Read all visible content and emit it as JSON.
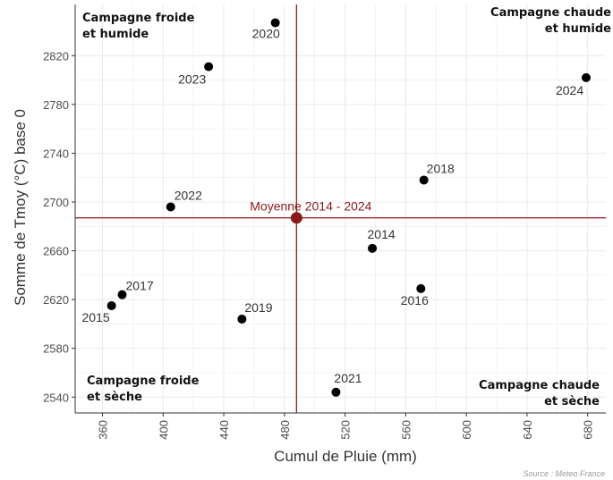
{
  "chart_data": {
    "type": "scatter",
    "xlabel": "Cumul de Pluie (mm)",
    "ylabel": "Somme de Tmoy (°C) base 0",
    "xlim": [
      342,
      692
    ],
    "ylim": [
      2527,
      2862
    ],
    "x_ticks": [
      360,
      400,
      440,
      480,
      520,
      560,
      600,
      640,
      680
    ],
    "y_ticks": [
      2540,
      2580,
      2620,
      2660,
      2700,
      2740,
      2780,
      2820
    ],
    "x_tick_labels": [
      "360",
      "400",
      "440",
      "480",
      "520",
      "560",
      "600",
      "640",
      "680"
    ],
    "y_tick_labels": [
      "2540",
      "2580",
      "2620",
      "2660",
      "2700",
      "2740",
      "2780",
      "2820"
    ],
    "grid": true,
    "points": [
      {
        "label": "2014",
        "x": 538,
        "y": 2662
      },
      {
        "label": "2015",
        "x": 366,
        "y": 2615
      },
      {
        "label": "2016",
        "x": 570,
        "y": 2629
      },
      {
        "label": "2017",
        "x": 373,
        "y": 2624
      },
      {
        "label": "2018",
        "x": 572,
        "y": 2718
      },
      {
        "label": "2019",
        "x": 452,
        "y": 2604
      },
      {
        "label": "2020",
        "x": 474,
        "y": 2847
      },
      {
        "label": "2021",
        "x": 514,
        "y": 2544
      },
      {
        "label": "2022",
        "x": 405,
        "y": 2696
      },
      {
        "label": "2023",
        "x": 430,
        "y": 2811
      },
      {
        "label": "2024",
        "x": 679,
        "y": 2802
      }
    ],
    "mean_point": {
      "label": "Moyenne 2014 - 2024",
      "x": 488,
      "y": 2687
    },
    "quadrants": {
      "top_left": [
        "Campagne froide",
        "et humide"
      ],
      "top_right": [
        "Campagne chaude",
        "et humide"
      ],
      "bottom_left": [
        "Campagne froide",
        "et sèche"
      ],
      "bottom_right": [
        "Campagne chaude",
        "et sèche"
      ]
    },
    "source": "Source : Meteo France",
    "colors": {
      "points": "#000000",
      "mean": "#8b1a1a",
      "mean_lines": "#9b2c2c",
      "grid": "#ebebeb"
    }
  }
}
